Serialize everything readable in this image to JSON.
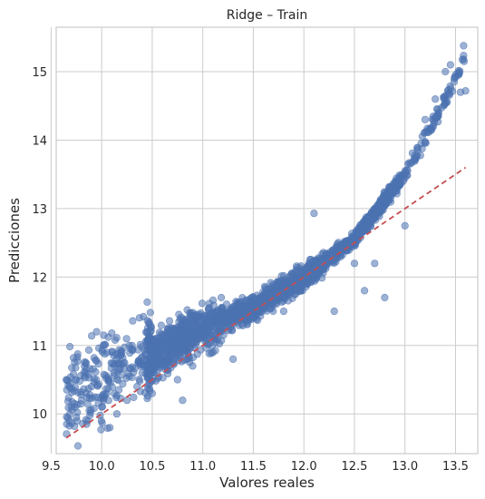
{
  "chart_data": {
    "type": "scatter",
    "title": "Ridge – Train",
    "xlabel": "Valores reales",
    "ylabel": "Predicciones",
    "xlim": [
      9.55,
      13.72
    ],
    "ylim": [
      9.42,
      15.65
    ],
    "xticks": [
      9.5,
      10.0,
      10.5,
      11.0,
      11.5,
      12.0,
      12.5,
      13.0,
      13.5
    ],
    "xtick_labels": [
      "9.5",
      "10.0",
      "10.5",
      "11.0",
      "11.5",
      "12.0",
      "12.5",
      "13.0",
      "13.5"
    ],
    "yticks": [
      10,
      11,
      12,
      13,
      14,
      15
    ],
    "ytick_labels": [
      "10",
      "11",
      "12",
      "13",
      "14",
      "15"
    ],
    "grid": true,
    "point_color": "#4c72b0",
    "reference_line": {
      "x": [
        9.65,
        13.6
      ],
      "y": [
        9.65,
        13.6
      ],
      "color": "#c44e52",
      "style": "dashed"
    },
    "trend": {
      "x": [
        9.65,
        10.0,
        10.5,
        11.0,
        11.5,
        12.0,
        12.5,
        13.0,
        13.3,
        13.6
      ],
      "y": [
        10.3,
        10.5,
        10.85,
        11.25,
        11.55,
        12.0,
        12.55,
        13.5,
        14.3,
        15.2
      ]
    },
    "points": [
      [
        9.65,
        10.5
      ],
      [
        9.68,
        9.9
      ],
      [
        9.7,
        10.1
      ],
      [
        9.72,
        10.58
      ],
      [
        9.75,
        9.95
      ],
      [
        9.8,
        10.2
      ],
      [
        9.83,
        10.7
      ],
      [
        9.85,
        9.85
      ],
      [
        9.9,
        10.4
      ],
      [
        9.95,
        11.2
      ],
      [
        10.0,
        10.1
      ],
      [
        10.02,
        11.15
      ],
      [
        10.05,
        10.3
      ],
      [
        10.08,
        9.8
      ],
      [
        10.1,
        11.18
      ],
      [
        10.12,
        10.6
      ],
      [
        10.15,
        10.0
      ],
      [
        10.2,
        10.9
      ],
      [
        10.25,
        10.2
      ],
      [
        10.3,
        11.0
      ],
      [
        10.35,
        10.4
      ],
      [
        10.4,
        10.6
      ],
      [
        10.45,
        11.2
      ],
      [
        10.5,
        10.3
      ],
      [
        10.55,
        11.1
      ],
      [
        10.6,
        10.8
      ],
      [
        10.7,
        11.25
      ],
      [
        10.75,
        10.5
      ],
      [
        10.8,
        10.2
      ],
      [
        10.9,
        10.7
      ],
      [
        11.0,
        11.4
      ],
      [
        11.1,
        10.9
      ],
      [
        11.3,
        10.8
      ],
      [
        11.5,
        11.7
      ],
      [
        11.8,
        11.5
      ],
      [
        12.1,
        12.93
      ],
      [
        12.3,
        11.5
      ],
      [
        12.5,
        12.2
      ],
      [
        12.6,
        11.8
      ],
      [
        12.7,
        12.2
      ],
      [
        12.8,
        11.7
      ],
      [
        12.85,
        13.3
      ],
      [
        13.0,
        12.75
      ],
      [
        13.2,
        14.3
      ],
      [
        13.3,
        14.6
      ],
      [
        13.4,
        15.0
      ],
      [
        13.45,
        15.1
      ],
      [
        13.55,
        14.7
      ],
      [
        13.58,
        15.38
      ],
      [
        13.6,
        14.72
      ]
    ]
  }
}
